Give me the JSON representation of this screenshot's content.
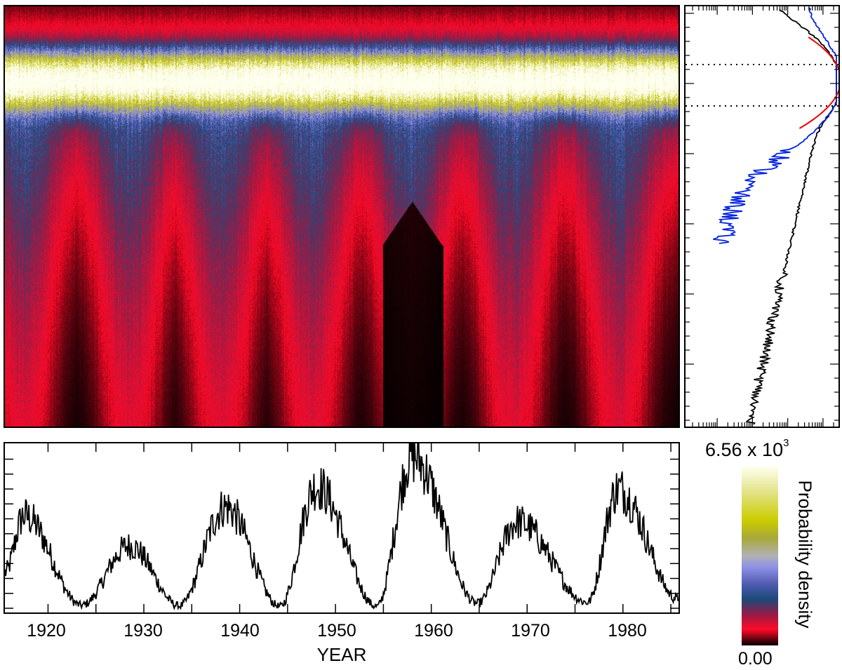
{
  "colors": {
    "black": "#000000",
    "red": "#ff0a28",
    "dark_red": "#9a1a45",
    "navy": "#1b4a7a",
    "blue_violet": "#8f92e6",
    "yellow": "#cccc00",
    "cream": "#ffffef",
    "curve_black": "#000000",
    "curve_blue": "#0022dd",
    "curve_red": "#ee0000"
  },
  "chart_data": [
    {
      "type": "heatmap",
      "description_ref": "probability density vs time",
      "xlim": [
        1915.5,
        1985.8
      ],
      "colorbar": {
        "label": "Probability density",
        "max_text": "6.56 x 10",
        "max_exponent": "3",
        "min_text": "0.00",
        "max": 6560,
        "min": 0
      },
      "cycle_maxima_years": [
        1917.5,
        1928.5,
        1938.0,
        1947.5,
        1957.8,
        1968.5,
        1979.5
      ],
      "gap": {
        "start": 1954.9,
        "end": 1961.2
      }
    },
    {
      "type": "line",
      "description_ref": "side distribution",
      "x_scale": "log",
      "series": [
        {
          "name": "black",
          "color": "#000000"
        },
        {
          "name": "blue",
          "color": "#0022dd"
        },
        {
          "name": "red fit",
          "color": "#ee0000"
        }
      ],
      "dotted_lines": 2
    },
    {
      "type": "line",
      "description_ref": "time series",
      "xlabel": "YEAR",
      "xlim": [
        1915.5,
        1985.8
      ],
      "x_ticks": [
        "1920",
        "1930",
        "1940",
        "1950",
        "1960",
        "1970",
        "1980"
      ],
      "ylim": [
        0,
        260
      ],
      "cycle_maxima": [
        {
          "year": 1917.5,
          "value": 155
        },
        {
          "year": 1928.5,
          "value": 105
        },
        {
          "year": 1938.5,
          "value": 170
        },
        {
          "year": 1948.0,
          "value": 205
        },
        {
          "year": 1958.0,
          "value": 255
        },
        {
          "year": 1969.0,
          "value": 145
        },
        {
          "year": 1979.5,
          "value": 200
        }
      ],
      "cycle_minima": [
        {
          "year": 1923.5,
          "value": 5
        },
        {
          "year": 1933.7,
          "value": 4
        },
        {
          "year": 1944.2,
          "value": 3
        },
        {
          "year": 1954.3,
          "value": 3
        },
        {
          "year": 1964.8,
          "value": 8
        },
        {
          "year": 1976.3,
          "value": 10
        }
      ]
    }
  ]
}
